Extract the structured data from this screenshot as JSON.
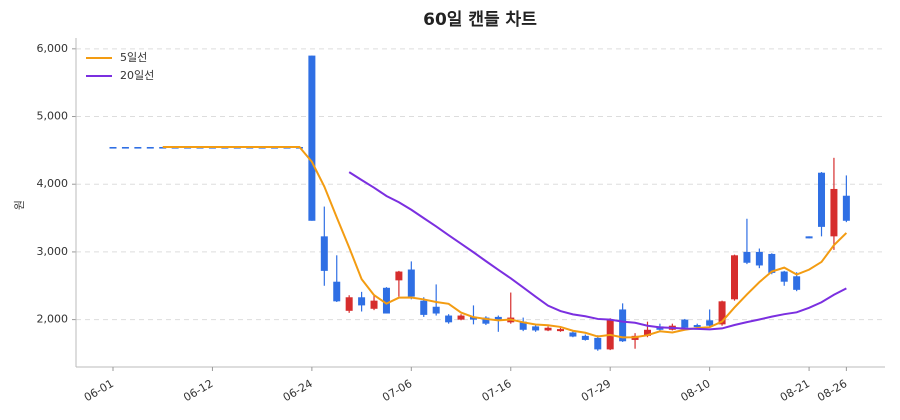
{
  "chart_data": {
    "type": "candlestick",
    "title": "60일 캔들 차트",
    "y_label": "원",
    "categories": [
      "06-01",
      null,
      null,
      null,
      null,
      null,
      null,
      null,
      "06-12",
      null,
      null,
      null,
      null,
      null,
      null,
      null,
      "06-24",
      null,
      null,
      null,
      null,
      null,
      null,
      null,
      "07-06",
      null,
      null,
      null,
      null,
      null,
      null,
      null,
      "07-16",
      null,
      null,
      null,
      null,
      null,
      null,
      null,
      "07-29",
      null,
      null,
      null,
      null,
      null,
      null,
      null,
      "08-10",
      null,
      null,
      null,
      null,
      null,
      null,
      null,
      "08-21",
      null,
      null,
      "08-26"
    ],
    "open": [
      4550,
      4550,
      4550,
      4550,
      4550,
      4550,
      4550,
      4550,
      4550,
      4550,
      4550,
      4550,
      4550,
      4550,
      4550,
      4550,
      5900,
      3230,
      2560,
      2130,
      2330,
      2160,
      2470,
      2580,
      2740,
      2280,
      2190,
      2060,
      2000,
      2040,
      2030,
      2040,
      1960,
      1970,
      1900,
      1840,
      1830,
      1810,
      1760,
      1730,
      1560,
      2150,
      1700,
      1760,
      1900,
      1850,
      2000,
      1920,
      1990,
      1930,
      2300,
      3000,
      3000,
      2970,
      2710,
      2640,
      3230,
      4170,
      3230,
      3830
    ],
    "high": [
      4550,
      4550,
      4550,
      4550,
      4550,
      4550,
      4550,
      4550,
      4550,
      4550,
      4550,
      4550,
      4550,
      4550,
      4550,
      4550,
      5900,
      3670,
      2950,
      2360,
      2410,
      2350,
      2480,
      2720,
      2860,
      2330,
      2520,
      2080,
      2080,
      2210,
      2050,
      2060,
      2400,
      2030,
      1920,
      1900,
      1880,
      1830,
      1780,
      1770,
      2020,
      2240,
      1800,
      1970,
      1940,
      1940,
      2010,
      1940,
      2150,
      2280,
      2960,
      3490,
      3050,
      2980,
      2720,
      2700,
      3230,
      4180,
      4390,
      4130
    ],
    "low": [
      4550,
      4550,
      4550,
      4550,
      4550,
      4550,
      4550,
      4550,
      4550,
      4550,
      4550,
      4550,
      4550,
      4550,
      4550,
      4550,
      3460,
      2500,
      2260,
      2100,
      2120,
      2140,
      2090,
      2340,
      2300,
      2040,
      2060,
      1940,
      1990,
      1930,
      1920,
      1820,
      1940,
      1830,
      1820,
      1830,
      1820,
      1740,
      1690,
      1540,
      1550,
      1670,
      1570,
      1740,
      1830,
      1840,
      1860,
      1880,
      1890,
      1910,
      2280,
      2820,
      2760,
      2670,
      2500,
      2420,
      3200,
      3230,
      3030,
      3440
    ],
    "close": [
      4550,
      4550,
      4550,
      4550,
      4550,
      4550,
      4550,
      4550,
      4550,
      4550,
      4550,
      4550,
      4550,
      4550,
      4550,
      4550,
      3460,
      2720,
      2270,
      2330,
      2210,
      2280,
      2090,
      2710,
      2340,
      2070,
      2090,
      1960,
      2060,
      2000,
      1940,
      1980,
      2030,
      1850,
      1840,
      1880,
      1860,
      1750,
      1700,
      1560,
      2000,
      1680,
      1760,
      1850,
      1850,
      1910,
      1880,
      1890,
      1910,
      2270,
      2950,
      2840,
      2800,
      2690,
      2560,
      2440,
      3200,
      3370,
      3930,
      3460
    ],
    "up_color": "#d62d2d",
    "down_color": "#2f6fe4",
    "series": [
      {
        "name": "5일선",
        "color": "#f39c12",
        "values": [
          null,
          null,
          null,
          null,
          4550,
          4550,
          4550,
          4550,
          4550,
          4550,
          4550,
          4550,
          4550,
          4550,
          4550,
          4550,
          4332,
          3966,
          3510,
          3066,
          2598,
          2362,
          2236,
          2324,
          2326,
          2298,
          2260,
          2234,
          2104,
          2036,
          2010,
          1988,
          2002,
          1960,
          1928,
          1916,
          1892,
          1836,
          1806,
          1750,
          1774,
          1738,
          1740,
          1770,
          1828,
          1810,
          1850,
          1876,
          1888,
          1972,
          2180,
          2372,
          2554,
          2710,
          2768,
          2666,
          2738,
          2852,
          3100,
          3280
        ]
      },
      {
        "name": "20일선",
        "color": "#7b2fe0",
        "values": [
          null,
          null,
          null,
          null,
          null,
          null,
          null,
          null,
          null,
          null,
          null,
          null,
          null,
          null,
          null,
          null,
          null,
          null,
          null,
          4179,
          4062,
          3949,
          3826,
          3734,
          3623,
          3499,
          3376,
          3247,
          3122,
          2995,
          2864,
          2736,
          2610,
          2475,
          2339,
          2206,
          2126,
          2077,
          2049,
          2010,
          2000,
          1970,
          1953,
          1910,
          1886,
          1878,
          1867,
          1864,
          1856,
          1870,
          1920,
          1963,
          2002,
          2044,
          2080,
          2108,
          2175,
          2256,
          2367,
          2462
        ]
      }
    ],
    "ylim": [
      1300,
      6160
    ],
    "yticks": [
      {
        "value": 2000,
        "label": "2,000"
      },
      {
        "value": 3000,
        "label": "3,000"
      },
      {
        "value": 4000,
        "label": "4,000"
      },
      {
        "value": 5000,
        "label": "5,000"
      },
      {
        "value": 6000,
        "label": "6,000"
      }
    ],
    "grid": true,
    "legend": "upper-left"
  }
}
